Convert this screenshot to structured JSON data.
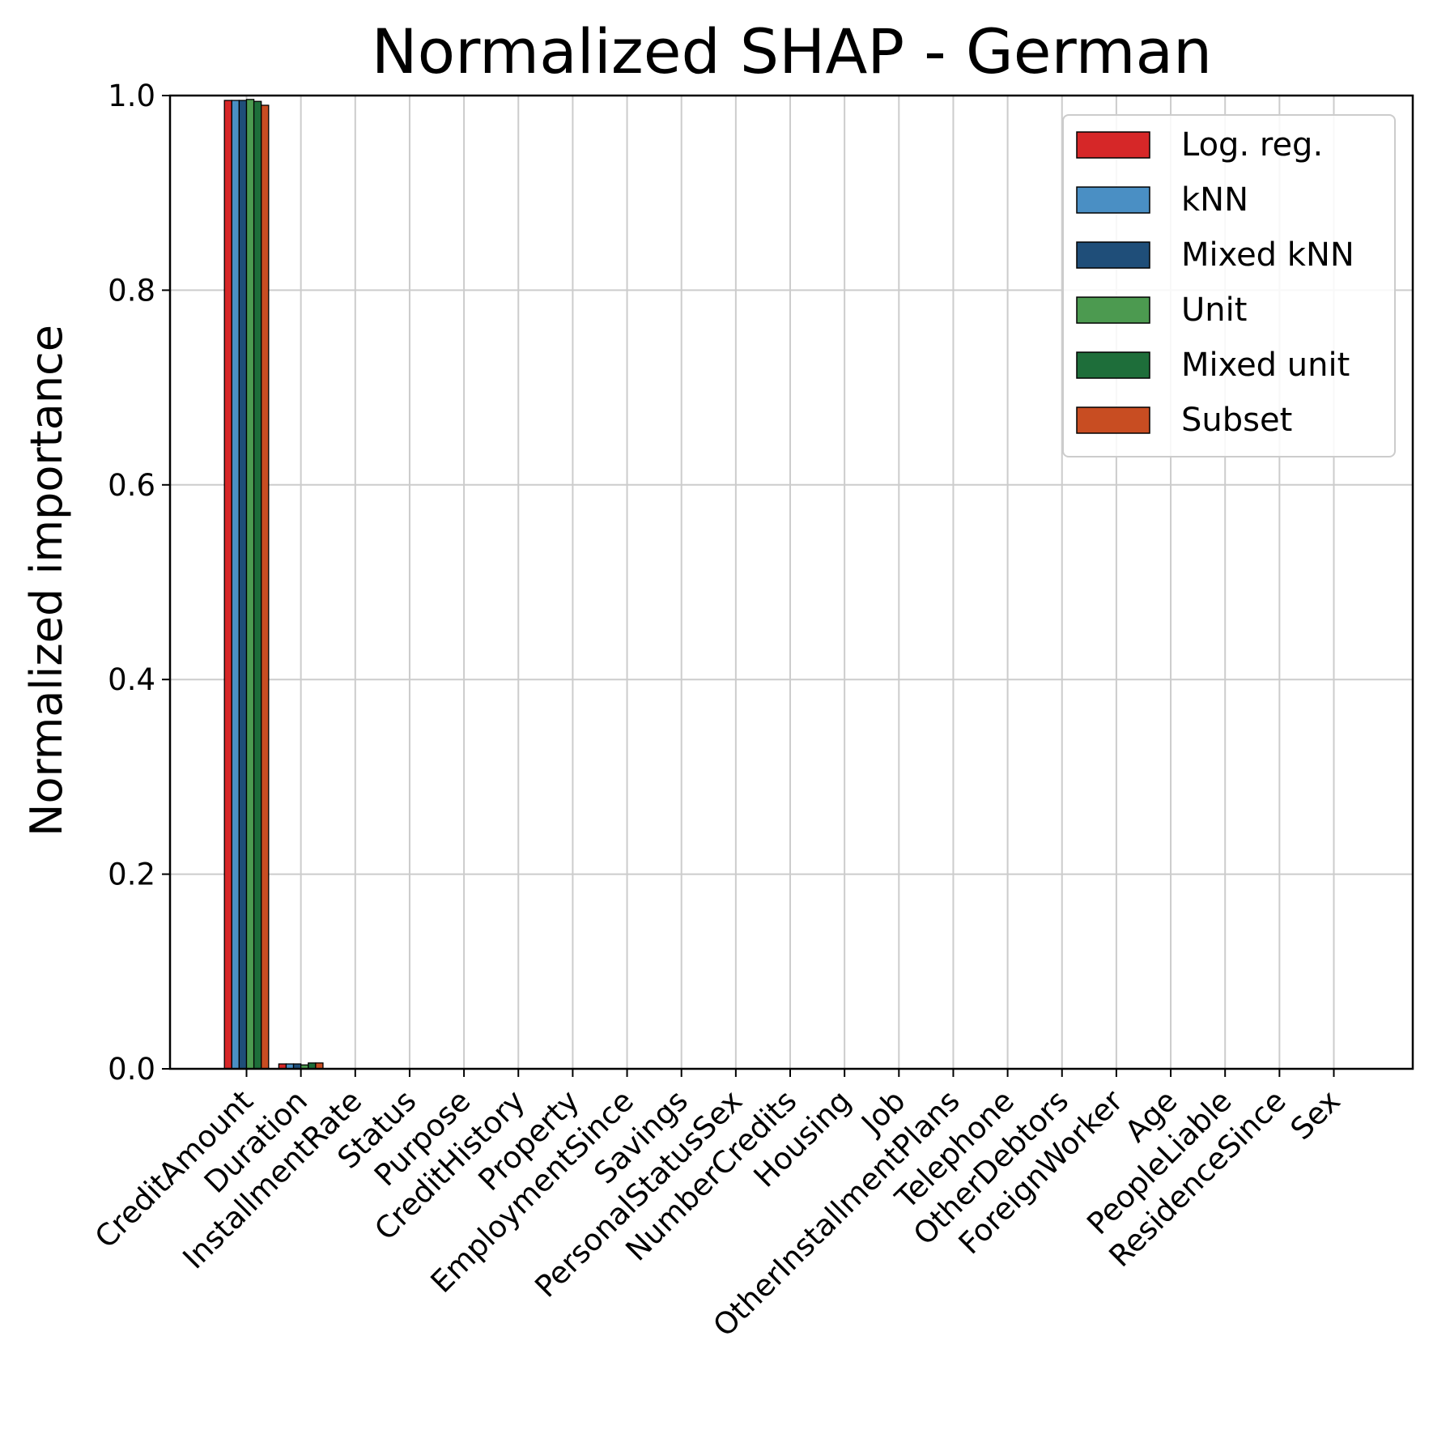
{
  "chart_data": {
    "type": "bar",
    "title": "Normalized SHAP - German",
    "xlabel": "",
    "ylabel": "Normalized importance",
    "ylim": [
      0,
      1.0
    ],
    "yticks": [
      "0.0",
      "0.2",
      "0.4",
      "0.6",
      "0.8",
      "1.0"
    ],
    "grid": true,
    "legend_position": "top-right",
    "categories": [
      "CreditAmount",
      "Duration",
      "InstallmentRate",
      "Status",
      "Purpose",
      "CreditHistory",
      "Property",
      "EmploymentSince",
      "Savings",
      "PersonalStatusSex",
      "NumberCredits",
      "Housing",
      "Job",
      "OtherInstallmentPlans",
      "Telephone",
      "OtherDebtors",
      "ForeignWorker",
      "Age",
      "PeopleLiable",
      "ResidenceSince",
      "Sex"
    ],
    "series": [
      {
        "name": "Log. reg.",
        "color": "#d62728",
        "values": [
          0.995,
          0.005,
          0.0,
          0.0,
          0.0,
          0.0,
          0.0,
          0.0,
          0.0,
          0.0,
          0.0,
          0.0,
          0.0,
          0.0,
          0.0,
          0.0,
          0.0,
          0.0,
          0.0,
          0.0,
          0.0
        ]
      },
      {
        "name": "kNN",
        "color": "#4a8fc4",
        "values": [
          0.995,
          0.005,
          0.0,
          0.0,
          0.0,
          0.0,
          0.0,
          0.0,
          0.0,
          0.0,
          0.0,
          0.0,
          0.0,
          0.0,
          0.0,
          0.0,
          0.0,
          0.0,
          0.0,
          0.0,
          0.0
        ]
      },
      {
        "name": "Mixed kNN",
        "color": "#1f4e79",
        "values": [
          0.995,
          0.005,
          0.0,
          0.0,
          0.0,
          0.0,
          0.0,
          0.0,
          0.0,
          0.0,
          0.0,
          0.0,
          0.0,
          0.0,
          0.0,
          0.0,
          0.0,
          0.0,
          0.0,
          0.0,
          0.0
        ]
      },
      {
        "name": "Unit",
        "color": "#4c9a50",
        "values": [
          0.996,
          0.004,
          0.0,
          0.0,
          0.0,
          0.0,
          0.0,
          0.0,
          0.0,
          0.0,
          0.0,
          0.0,
          0.0,
          0.0,
          0.0,
          0.0,
          0.0,
          0.0,
          0.0,
          0.0,
          0.0
        ]
      },
      {
        "name": "Mixed unit",
        "color": "#1e6e3a",
        "values": [
          0.994,
          0.006,
          0.0,
          0.0,
          0.0,
          0.0,
          0.0,
          0.0,
          0.0,
          0.0,
          0.0,
          0.0,
          0.0,
          0.0,
          0.0,
          0.0,
          0.0,
          0.0,
          0.0,
          0.0,
          0.0
        ]
      },
      {
        "name": "Subset",
        "color": "#c84d22",
        "values": [
          0.99,
          0.006,
          0.0,
          0.0,
          0.0,
          0.0,
          0.0,
          0.0,
          0.0,
          0.0,
          0.0,
          0.0,
          0.0,
          0.0,
          0.0,
          0.0,
          0.0,
          0.0,
          0.0,
          0.0,
          0.0
        ]
      }
    ]
  }
}
